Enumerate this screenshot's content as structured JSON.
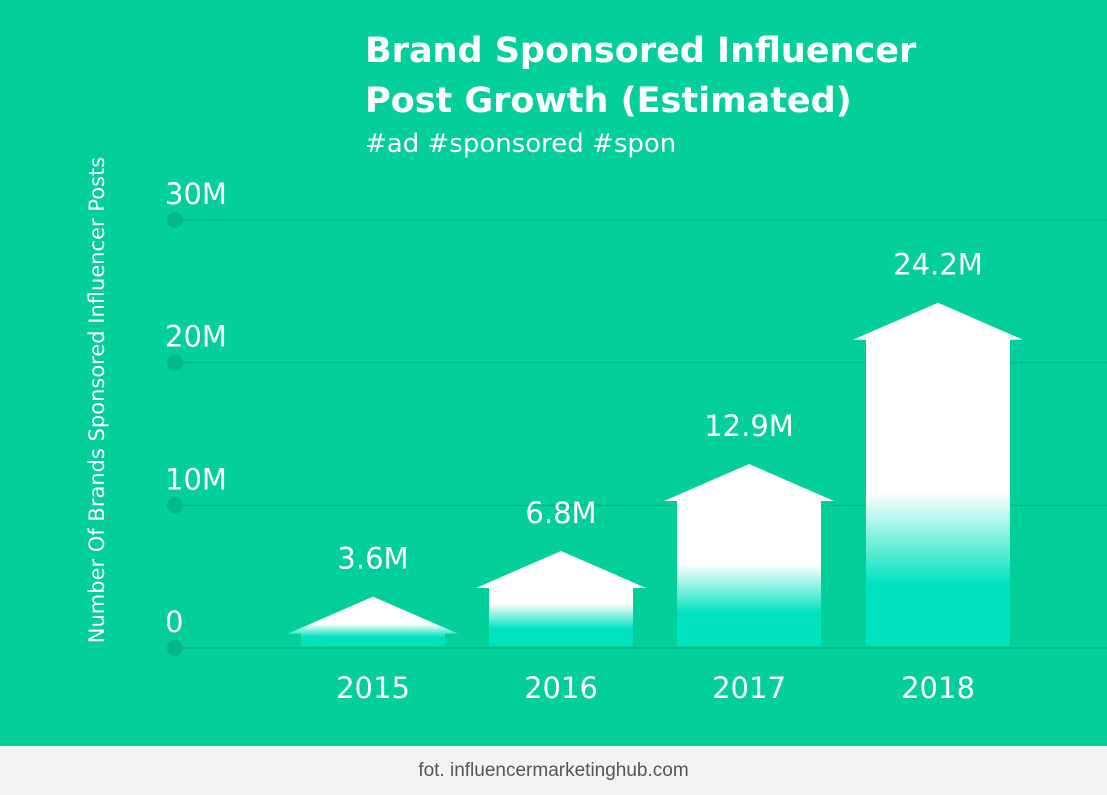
{
  "chart_data": {
    "type": "bar",
    "title_line1": "Brand Sponsored Influencer",
    "title_line2": "Post Growth (Estimated)",
    "subtitle": "#ad #sponsored #spon",
    "ylabel": "Number Of Brands Sponsored Influencer Posts",
    "xlabel": "",
    "categories": [
      "2015",
      "2016",
      "2017",
      "2018"
    ],
    "values": [
      3.6,
      6.8,
      12.9,
      24.2
    ],
    "value_labels": [
      "3.6M",
      "6.8M",
      "12.9M",
      "24.2M"
    ],
    "yticks": [
      0,
      10,
      20,
      30
    ],
    "ytick_labels": [
      "0",
      "10M",
      "20M",
      "30M"
    ],
    "ylim": [
      0,
      30
    ],
    "grid": true,
    "colors": {
      "background": "#03cf9b",
      "bar_top": "#ffffff",
      "bar_bottom": "#00e2c0",
      "grid": "#02b886"
    }
  },
  "footer": {
    "credit": "fot. influencermarketinghub.com"
  }
}
